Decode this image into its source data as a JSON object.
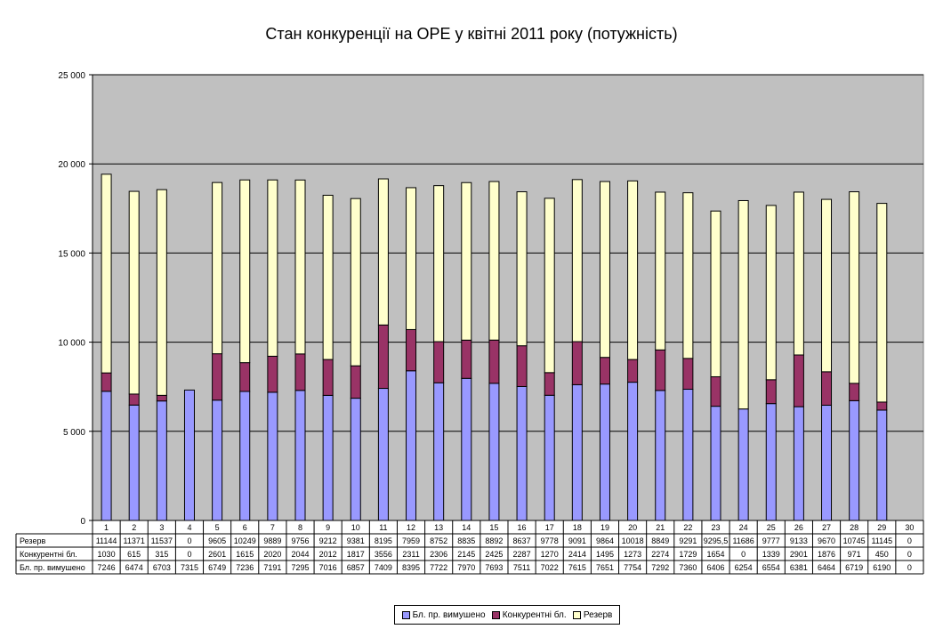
{
  "chart_data": {
    "type": "bar",
    "stacked": true,
    "title": "Стан конкуренції на ОРЕ  у квітні 2011 року (потужність)",
    "categories": [
      "1",
      "2",
      "3",
      "4",
      "5",
      "6",
      "7",
      "8",
      "9",
      "10",
      "11",
      "12",
      "13",
      "14",
      "15",
      "16",
      "17",
      "18",
      "19",
      "20",
      "21",
      "22",
      "23",
      "24",
      "25",
      "26",
      "27",
      "28",
      "29",
      "30"
    ],
    "ylim": [
      0,
      25000
    ],
    "yticks": [
      "0",
      "5 000",
      "10 000",
      "15 000",
      "20 000",
      "25 000"
    ],
    "ytick_values": [
      0,
      5000,
      10000,
      15000,
      20000,
      25000
    ],
    "grid": true,
    "plot_background": "#c0c0c0",
    "legend_position": "bottom",
    "series": [
      {
        "name": "Бл. пр. вимушено",
        "color": "#9999ff",
        "values": [
          7246,
          6474,
          6703,
          7315,
          6749,
          7236,
          7191,
          7295,
          7016,
          6857,
          7409,
          8395,
          7722,
          7970,
          7693,
          7511,
          7022,
          7615,
          7651,
          7754,
          7292,
          7360,
          6406,
          6254,
          6554,
          6381,
          6464,
          6719,
          6190,
          0
        ],
        "labels": [
          "7246",
          "6474",
          "6703",
          "7315",
          "6749",
          "7236",
          "7191",
          "7295",
          "7016",
          "6857",
          "7409",
          "8395",
          "7722",
          "7970",
          "7693",
          "7511",
          "7022",
          "7615",
          "7651",
          "7754",
          "7292",
          "7360",
          "6406",
          "6254",
          "6554",
          "6381",
          "6464",
          "6719",
          "6190",
          "0"
        ]
      },
      {
        "name": "Конкурентні бл.",
        "color": "#993366",
        "values": [
          1030,
          615,
          315,
          0,
          2601,
          1615,
          2020,
          2044,
          2012,
          1817,
          3556,
          2311,
          2306,
          2145,
          2425,
          2287,
          1270,
          2414,
          1495,
          1273,
          2274,
          1729,
          1654,
          0,
          1339,
          2901,
          1876,
          971,
          450,
          0
        ],
        "labels": [
          "1030",
          "615",
          "315",
          "0",
          "2601",
          "1615",
          "2020",
          "2044",
          "2012",
          "1817",
          "3556",
          "2311",
          "2306",
          "2145",
          "2425",
          "2287",
          "1270",
          "2414",
          "1495",
          "1273",
          "2274",
          "1729",
          "1654",
          "0",
          "1339",
          "2901",
          "1876",
          "971",
          "450",
          "0"
        ]
      },
      {
        "name": "Резерв",
        "color": "#ffffcc",
        "values": [
          11144,
          11371,
          11537,
          0,
          9605,
          10249,
          9889,
          9756,
          9212,
          9381,
          8195,
          7959,
          8752,
          8835,
          8892,
          8637,
          9778,
          9091,
          9864,
          10018,
          8849,
          9291,
          9295.5,
          11686,
          9777,
          9133,
          9670,
          10745,
          11145,
          0
        ],
        "labels": [
          "11144",
          "11371",
          "11537",
          "0",
          "9605",
          "10249",
          "9889",
          "9756",
          "9212",
          "9381",
          "8195",
          "7959",
          "8752",
          "8835",
          "8892",
          "8637",
          "9778",
          "9091",
          "9864",
          "10018",
          "8849",
          "9291",
          "9295,5",
          "11686",
          "9777",
          "9133",
          "9670",
          "10745",
          "11145",
          "0"
        ]
      }
    ],
    "table_rows": [
      "Резерв",
      "Конкурентні бл.",
      "Бл. пр. вимушено"
    ]
  }
}
